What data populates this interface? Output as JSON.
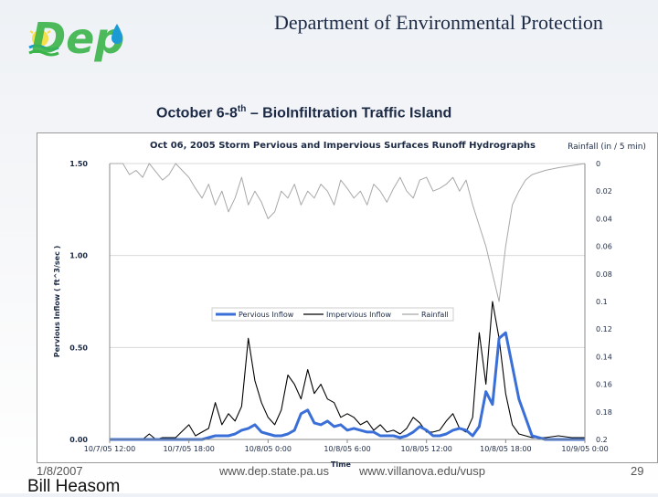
{
  "slide": {
    "organization": "Department of Environmental Protection",
    "logo_text": "Dep",
    "subtitle": {
      "pre": "October 6-8",
      "sup": "th",
      "post": " – BioInfiltration Traffic Island"
    },
    "footer_date": "1/8/2007",
    "footer_url1": "www.dep.state.pa.us",
    "footer_url2": "www.villanova.edu/vusp",
    "page_number": "29",
    "author": "Bill Heasom"
  },
  "colors": {
    "pervious": "#3a6fd8",
    "impervious": "#000000",
    "rainfall": "#a8a8a8",
    "title": "#1c2a45",
    "logo_green": "#3bb54a",
    "logo_blue": "#1c9ad6"
  },
  "chart_data": {
    "type": "line",
    "title": "Oct 06, 2005 Storm Pervious and Impervious Surfaces Runoff Hydrographs",
    "xlabel": "Time",
    "ylabel": "Pervious Inflow ( ft^3/sec )",
    "y2label": "Rainfall (in / 5 min)",
    "ylim": [
      0,
      1.5
    ],
    "y2lim": [
      0,
      0.2
    ],
    "y2_inverted": true,
    "yticks": [
      "0.00",
      "0.50",
      "1.00",
      "1.50"
    ],
    "y2ticks": [
      "0",
      "0.02",
      "0.04",
      "0.06",
      "0.08",
      "0.1",
      "0.12",
      "0.14",
      "0.16",
      "0.18",
      "0.2"
    ],
    "xticks": [
      "10/7/05 12:00",
      "10/7/05 18:00",
      "10/8/05 0:00",
      "10/8/05 6:00",
      "10/8/05 12:00",
      "10/8/05 18:00",
      "10/9/05 0:00"
    ],
    "grid": "horizontal",
    "legend_position": "center",
    "series": [
      {
        "name": "Pervious Inflow",
        "axis": "left",
        "x": [
          0,
          3,
          4,
          5,
          5.5,
          6,
          6.5,
          7,
          7.5,
          8,
          8.5,
          9,
          9.5,
          10,
          10.5,
          11,
          11.5,
          12,
          12.5,
          13,
          13.5,
          14,
          14.5,
          15,
          15.5,
          16,
          16.5,
          17,
          17.5,
          18,
          18.5,
          19,
          19.5,
          20,
          20.5,
          21,
          21.5,
          22,
          22.5,
          23,
          23.5,
          24,
          24.5,
          25,
          25.5,
          26,
          26.5,
          27,
          27.5,
          28,
          28.5,
          29,
          29.5,
          30,
          31,
          32,
          33,
          34,
          35,
          36
        ],
        "values": [
          0,
          0,
          0,
          0,
          0,
          0,
          0,
          0,
          0.01,
          0.02,
          0.02,
          0.02,
          0.03,
          0.05,
          0.06,
          0.08,
          0.04,
          0.03,
          0.02,
          0.02,
          0.03,
          0.05,
          0.14,
          0.16,
          0.09,
          0.08,
          0.1,
          0.07,
          0.08,
          0.05,
          0.06,
          0.05,
          0.04,
          0.04,
          0.02,
          0.02,
          0.02,
          0.01,
          0.02,
          0.04,
          0.07,
          0.05,
          0.02,
          0.02,
          0.03,
          0.05,
          0.06,
          0.05,
          0.02,
          0.07,
          0.26,
          0.19,
          0.55,
          0.58,
          0.22,
          0.02,
          0,
          0,
          0,
          0
        ]
      },
      {
        "name": "Impervious Inflow",
        "axis": "left",
        "x": [
          0,
          2.5,
          3,
          3.5,
          4,
          5,
          6,
          6.5,
          7,
          7.5,
          8,
          8.5,
          9,
          9.5,
          10,
          10.5,
          11,
          11.5,
          12,
          12.5,
          13,
          13.5,
          14,
          14.5,
          15,
          15.5,
          16,
          16.5,
          17,
          17.5,
          18,
          18.5,
          19,
          19.5,
          20,
          20.5,
          21,
          21.5,
          22,
          22.5,
          23,
          23.5,
          24,
          24.5,
          25,
          25.5,
          26,
          26.5,
          27,
          27.5,
          28,
          28.5,
          29,
          29.5,
          30,
          30.5,
          31,
          32,
          33,
          34,
          35,
          36
        ],
        "values": [
          0,
          0,
          0.03,
          0,
          0.01,
          0.01,
          0.08,
          0.02,
          0.04,
          0.06,
          0.2,
          0.08,
          0.14,
          0.1,
          0.18,
          0.55,
          0.32,
          0.2,
          0.12,
          0.08,
          0.16,
          0.35,
          0.3,
          0.22,
          0.38,
          0.25,
          0.3,
          0.22,
          0.2,
          0.12,
          0.14,
          0.12,
          0.08,
          0.1,
          0.05,
          0.08,
          0.04,
          0.05,
          0.03,
          0.06,
          0.12,
          0.09,
          0.04,
          0.04,
          0.05,
          0.1,
          0.14,
          0.06,
          0.04,
          0.12,
          0.58,
          0.3,
          0.75,
          0.55,
          0.25,
          0.08,
          0.03,
          0.01,
          0.01,
          0.02,
          0.01,
          0.01
        ]
      },
      {
        "name": "Rainfall",
        "axis": "right",
        "x": [
          0,
          1,
          1.5,
          2,
          2.5,
          3,
          3.5,
          4,
          4.5,
          5,
          6,
          6.5,
          7,
          7.5,
          8,
          8.5,
          9,
          9.5,
          10,
          10.5,
          11,
          11.5,
          12,
          12.5,
          13,
          13.5,
          14,
          14.5,
          15,
          15.5,
          16,
          16.5,
          17,
          17.5,
          18,
          18.5,
          19,
          19.5,
          20,
          20.5,
          21,
          21.5,
          22,
          22.5,
          23,
          23.5,
          24,
          24.5,
          25,
          25.5,
          26,
          26.5,
          27,
          27.5,
          28,
          28.5,
          29,
          29.5,
          30,
          30.5,
          31,
          31.5,
          32,
          33,
          34,
          36
        ],
        "values": [
          0,
          0,
          0.008,
          0.005,
          0.01,
          0,
          0.006,
          0.012,
          0.008,
          0,
          0.01,
          0.018,
          0.025,
          0.015,
          0.03,
          0.02,
          0.035,
          0.025,
          0.01,
          0.03,
          0.02,
          0.028,
          0.04,
          0.035,
          0.02,
          0.025,
          0.015,
          0.03,
          0.02,
          0.025,
          0.015,
          0.02,
          0.03,
          0.012,
          0.018,
          0.025,
          0.02,
          0.03,
          0.015,
          0.02,
          0.028,
          0.018,
          0.01,
          0.02,
          0.025,
          0.012,
          0.01,
          0.02,
          0.018,
          0.015,
          0.01,
          0.02,
          0.012,
          0.03,
          0.045,
          0.06,
          0.08,
          0.1,
          0.06,
          0.03,
          0.02,
          0.012,
          0.008,
          0.005,
          0.003,
          0
        ]
      }
    ]
  }
}
